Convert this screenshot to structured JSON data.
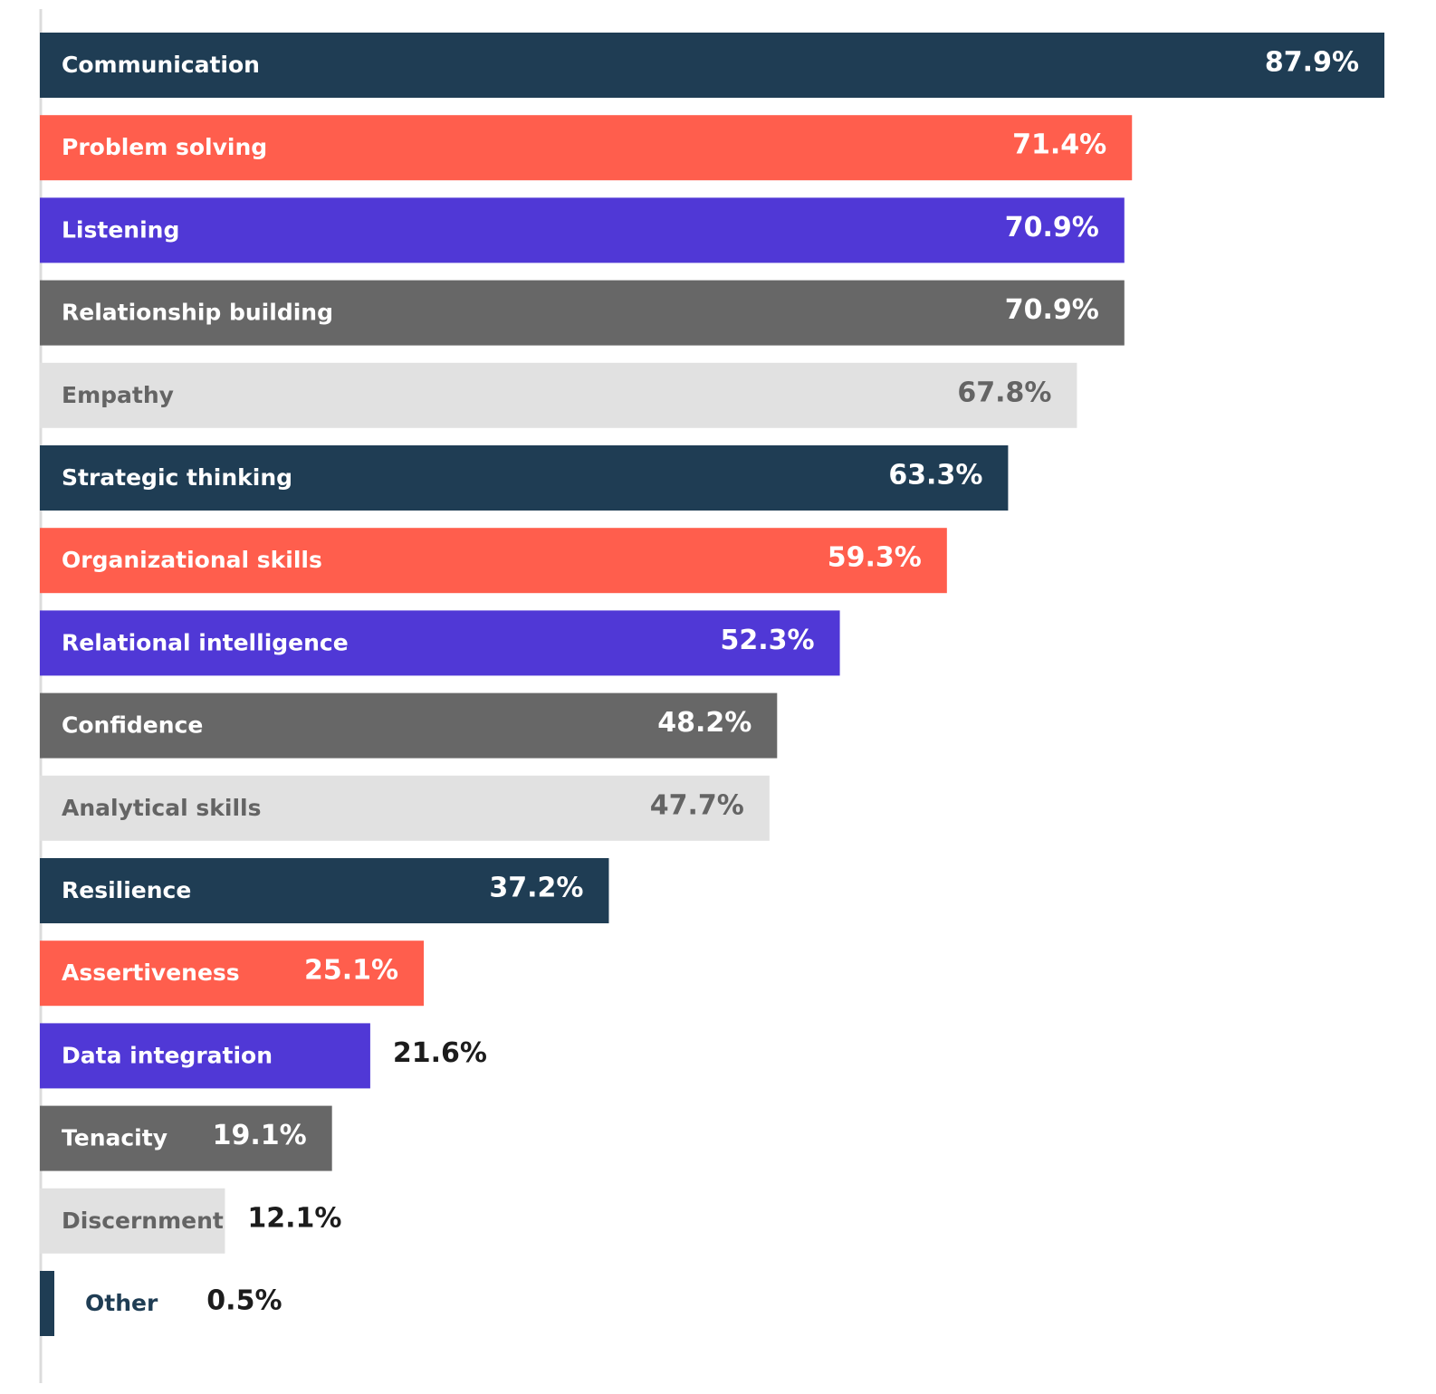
{
  "colors": {
    "navy": "#1f3d54",
    "coral": "#ff5e4d",
    "purple": "#5038d6",
    "gray": "#676767",
    "light_gray": "#e1e1e1",
    "white_text": "#ffffff",
    "gray_text": "#646464",
    "dark_text": "#1c1c1c",
    "axis": "#dcdcdc"
  },
  "chart_data": {
    "type": "bar",
    "orientation": "horizontal",
    "title": "",
    "xlabel": "",
    "ylabel": "",
    "xlim": [
      0,
      87.9
    ],
    "grid": false,
    "legend": "none",
    "categories": [
      "Communication",
      "Problem solving",
      "Listening",
      "Relationship building",
      "Empathy",
      "Strategic thinking",
      "Organizational skills",
      "Relational intelligence",
      "Confidence",
      "Analytical skills",
      "Resilience",
      "Assertiveness",
      "Data integration",
      "Tenacity",
      "Discernment",
      "Other"
    ],
    "values": [
      87.9,
      71.4,
      70.9,
      70.9,
      67.8,
      63.3,
      59.3,
      52.3,
      48.2,
      47.7,
      37.2,
      25.1,
      21.6,
      19.1,
      12.1,
      0.5
    ],
    "value_labels": [
      "87.9%",
      "71.4%",
      "70.9%",
      "70.9%",
      "67.8%",
      "63.3%",
      "59.3%",
      "52.3%",
      "48.2%",
      "47.7%",
      "37.2%",
      "25.1%",
      "21.6%",
      "19.1%",
      "12.1%",
      "0.5%"
    ],
    "bar_colors": [
      "navy",
      "coral",
      "purple",
      "gray",
      "light_gray",
      "navy",
      "coral",
      "purple",
      "gray",
      "light_gray",
      "navy",
      "coral",
      "purple",
      "gray",
      "light_gray",
      "navy"
    ]
  }
}
